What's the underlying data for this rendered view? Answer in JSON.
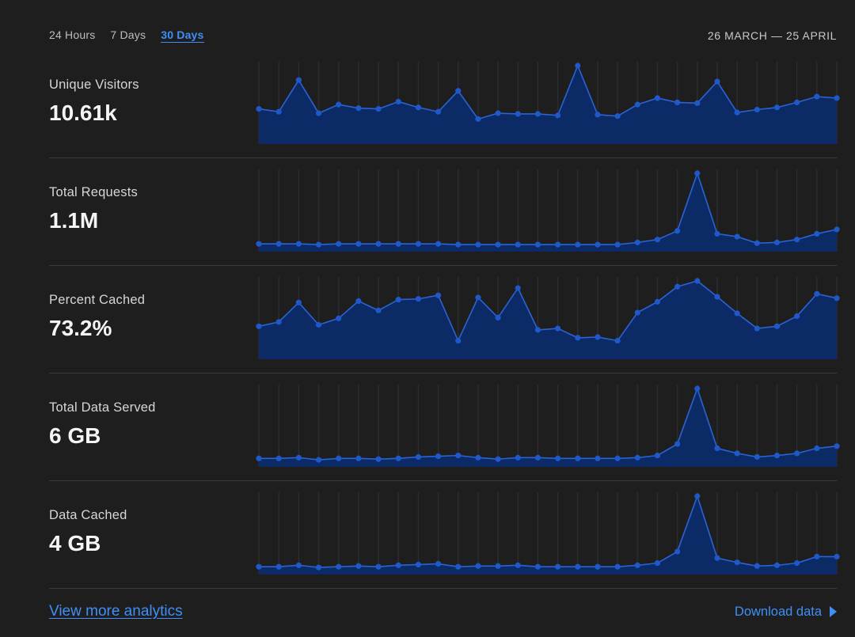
{
  "tabs": [
    {
      "label": "24 Hours",
      "active": false
    },
    {
      "label": "7 Days",
      "active": false
    },
    {
      "label": "30 Days",
      "active": true
    }
  ],
  "date_range": "26 MARCH — 25 APRIL",
  "colors": {
    "accent": "#3f8ff6",
    "area_fill": "#0b2a66",
    "line": "#2a63d6",
    "point": "#1f58c9"
  },
  "metrics": [
    {
      "label": "Unique Visitors",
      "value": "10.61k"
    },
    {
      "label": "Total Requests",
      "value": "1.1M"
    },
    {
      "label": "Percent Cached",
      "value": "73.2%"
    },
    {
      "label": "Total Data Served",
      "value": "6 GB"
    },
    {
      "label": "Data Cached",
      "value": "4 GB"
    }
  ],
  "chart_data": [
    {
      "type": "area",
      "ylim": [
        0,
        100
      ],
      "values": [
        40,
        36,
        80,
        34,
        46,
        41,
        40,
        50,
        42,
        36,
        65,
        26,
        34,
        33,
        33,
        31,
        100,
        32,
        30,
        46,
        55,
        49,
        48,
        78,
        35,
        39,
        42,
        49,
        57,
        55
      ]
    },
    {
      "type": "area",
      "ylim": [
        0,
        100
      ],
      "values": [
        2,
        2,
        2,
        1,
        2,
        2,
        2,
        2,
        2,
        2,
        1,
        1,
        1,
        1,
        1,
        1,
        1,
        1,
        1,
        4,
        8,
        20,
        100,
        16,
        12,
        3,
        4,
        8,
        16,
        22
      ]
    },
    {
      "type": "area",
      "ylim": [
        0,
        100
      ],
      "values": [
        37,
        43,
        70,
        39,
        48,
        72,
        59,
        74,
        75,
        80,
        17,
        77,
        49,
        90,
        32,
        34,
        21,
        22,
        17,
        56,
        71,
        92,
        100,
        78,
        55,
        34,
        37,
        51,
        82,
        76
      ]
    },
    {
      "type": "area",
      "ylim": [
        0,
        100
      ],
      "values": [
        3,
        3,
        4,
        1,
        3,
        3,
        2,
        3,
        5,
        6,
        7,
        4,
        2,
        4,
        4,
        3,
        3,
        3,
        3,
        4,
        7,
        23,
        100,
        17,
        10,
        5,
        7,
        10,
        17,
        20
      ]
    },
    {
      "type": "area",
      "ylim": [
        0,
        100
      ],
      "values": [
        2,
        2,
        4,
        1,
        2,
        3,
        2,
        4,
        5,
        6,
        2,
        3,
        3,
        4,
        2,
        2,
        2,
        2,
        2,
        4,
        7,
        23,
        100,
        14,
        8,
        3,
        4,
        7,
        16,
        16
      ]
    }
  ],
  "footer": {
    "more_link": "View more analytics",
    "download": "Download data"
  }
}
